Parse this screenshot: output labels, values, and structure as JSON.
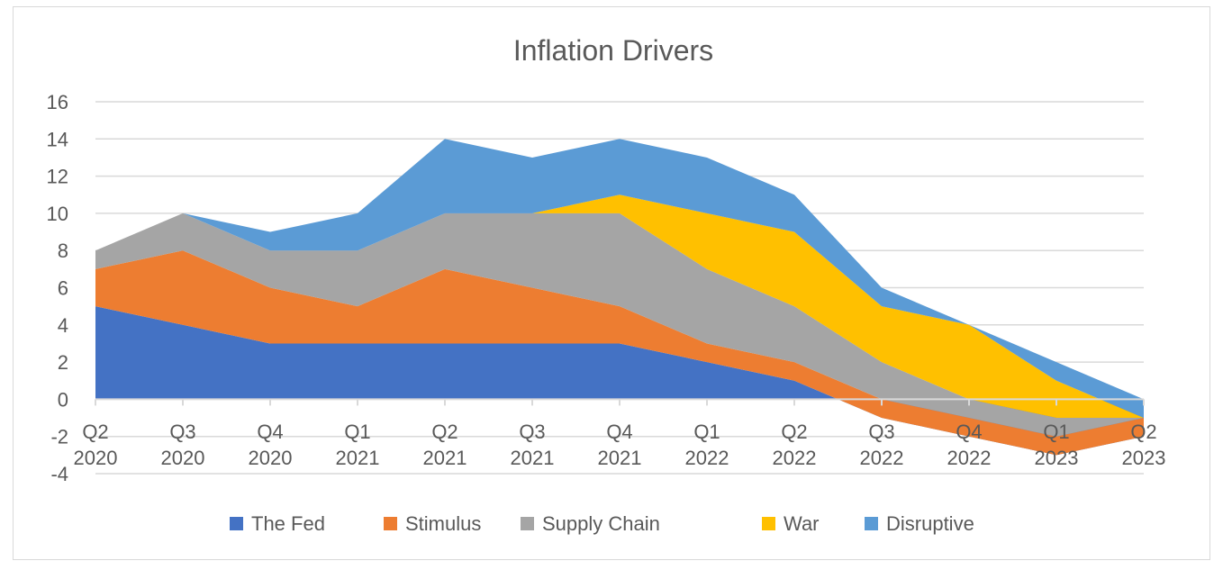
{
  "chart_data": {
    "type": "area",
    "stacked": true,
    "title": "Inflation Drivers",
    "xlabel": "",
    "ylabel": "",
    "ylim": [
      -4,
      16
    ],
    "ytick_step": 2,
    "grid": true,
    "legend_position": "bottom",
    "categories": [
      [
        "Q2",
        "2020"
      ],
      [
        "Q3",
        "2020"
      ],
      [
        "Q4",
        "2020"
      ],
      [
        "Q1",
        "2021"
      ],
      [
        "Q2",
        "2021"
      ],
      [
        "Q3",
        "2021"
      ],
      [
        "Q4",
        "2021"
      ],
      [
        "Q1",
        "2022"
      ],
      [
        "Q2",
        "2022"
      ],
      [
        "Q3",
        "2022"
      ],
      [
        "Q4",
        "2022"
      ],
      [
        "Q1",
        "2023"
      ],
      [
        "Q2",
        "2023"
      ]
    ],
    "series": [
      {
        "name": "The Fed",
        "color": "#4472C4",
        "values": [
          5,
          4,
          3,
          3,
          3,
          3,
          3,
          2,
          1,
          -1,
          -2,
          -3,
          -2
        ]
      },
      {
        "name": "Stimulus",
        "color": "#ED7D31",
        "values": [
          2,
          4,
          3,
          2,
          4,
          3,
          2,
          1,
          1,
          1,
          1,
          1,
          1
        ]
      },
      {
        "name": "Supply Chain",
        "color": "#A5A5A5",
        "values": [
          1,
          2,
          2,
          3,
          3,
          4,
          5,
          4,
          3,
          2,
          1,
          1,
          0
        ]
      },
      {
        "name": "War",
        "color": "#FFC000",
        "values": [
          0,
          0,
          0,
          0,
          0,
          0,
          1,
          3,
          4,
          3,
          4,
          2,
          0
        ]
      },
      {
        "name": "Disruptive",
        "color": "#5B9BD5",
        "values": [
          0,
          0,
          1,
          2,
          4,
          3,
          3,
          3,
          2,
          1,
          0,
          1,
          1
        ]
      }
    ]
  }
}
